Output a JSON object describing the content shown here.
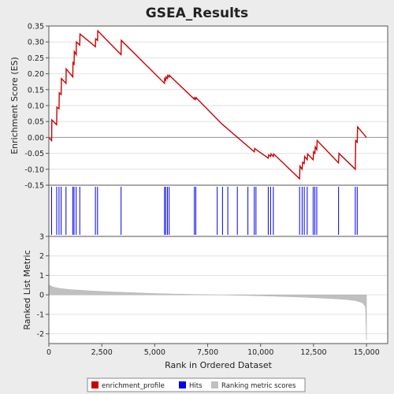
{
  "title": "GSEA_Results",
  "colors": {
    "background": "#ececec",
    "plot_bg": "#ffffff",
    "profile": "#cc0000",
    "hits": "#0000ee",
    "metric_fill": "#c0c0c0",
    "axis": "#555555",
    "text": "#222222"
  },
  "chart_data": [
    {
      "type": "line",
      "name": "enrichment-profile",
      "ylabel": "Enrichment Score (ES)",
      "xlim": [
        0,
        16000
      ],
      "ylim": [
        -0.15,
        0.35
      ],
      "yticks": [
        -0.15,
        -0.1,
        -0.05,
        0.0,
        0.05,
        0.1,
        0.15,
        0.2,
        0.25,
        0.3,
        0.35
      ],
      "ytick_labels": [
        "-0.15",
        "-0.10",
        "-0.05",
        "0.00",
        "0.05",
        "0.10",
        "0.15",
        "0.20",
        "0.25",
        "0.30",
        "0.35"
      ],
      "grid": true,
      "series": [
        {
          "name": "enrichment_profile",
          "x": [
            0,
            130,
            140,
            370,
            380,
            480,
            490,
            580,
            590,
            810,
            820,
            1130,
            1140,
            1190,
            1200,
            1290,
            1300,
            1460,
            1470,
            2200,
            2210,
            2300,
            2310,
            3410,
            3420,
            5460,
            5470,
            5520,
            5530,
            5600,
            5610,
            5680,
            5690,
            6870,
            6880,
            6940,
            6950,
            8200,
            8210,
            9700,
            9720,
            10360,
            10380,
            10470,
            10490,
            10600,
            10620,
            11840,
            11860,
            11960,
            11980,
            12060,
            12080,
            12200,
            12220,
            12480,
            12500,
            12560,
            12580,
            12650,
            12670,
            13680,
            13700,
            14470,
            14490,
            14560,
            14580,
            15000
          ],
          "y": [
            0.0,
            -0.01,
            0.055,
            0.04,
            0.095,
            0.09,
            0.14,
            0.135,
            0.185,
            0.17,
            0.215,
            0.19,
            0.235,
            0.23,
            0.27,
            0.26,
            0.3,
            0.29,
            0.325,
            0.285,
            0.31,
            0.305,
            0.335,
            0.26,
            0.305,
            0.17,
            0.185,
            0.18,
            0.19,
            0.185,
            0.195,
            0.19,
            0.195,
            0.12,
            0.125,
            0.12,
            0.125,
            0.04,
            0.04,
            -0.045,
            -0.035,
            -0.065,
            -0.055,
            -0.06,
            -0.052,
            -0.06,
            -0.052,
            -0.13,
            -0.09,
            -0.1,
            -0.078,
            -0.082,
            -0.06,
            -0.07,
            -0.052,
            -0.07,
            -0.045,
            -0.05,
            -0.03,
            -0.038,
            -0.01,
            -0.08,
            -0.05,
            -0.1,
            -0.01,
            -0.015,
            0.033,
            0.0
          ]
        }
      ]
    },
    {
      "type": "scatter",
      "name": "hits",
      "xlim": [
        0,
        16000
      ],
      "x": [
        130,
        370,
        480,
        580,
        810,
        1130,
        1190,
        1290,
        1460,
        2200,
        2300,
        3410,
        5460,
        5520,
        5600,
        5680,
        6870,
        6940,
        7950,
        8200,
        8450,
        8900,
        9400,
        9700,
        9780,
        10360,
        10470,
        10600,
        11840,
        11960,
        12060,
        12200,
        12480,
        12560,
        12650,
        13680,
        14470,
        14560
      ]
    },
    {
      "type": "area",
      "name": "ranking-metric",
      "ylabel": "Ranked List Metric",
      "xlabel": "Rank in Ordered Dataset",
      "xlim": [
        0,
        16000
      ],
      "ylim": [
        -2.5,
        3.0
      ],
      "xticks": [
        0,
        2500,
        5000,
        7500,
        10000,
        12500,
        15000
      ],
      "xtick_labels": [
        "0",
        "2,500",
        "5,000",
        "7,500",
        "10,000",
        "12,500",
        "15,000"
      ],
      "yticks": [
        -2,
        -1,
        0,
        1,
        2,
        3
      ],
      "ytick_labels": [
        "-2",
        "-1",
        "0",
        "1",
        "2",
        "3"
      ],
      "grid": true,
      "series": [
        {
          "name": "Ranking metric scores",
          "x": [
            0,
            20,
            200,
            500,
            1000,
            2000,
            3000,
            4000,
            5000,
            6000,
            7000,
            8000,
            9000,
            10000,
            11000,
            12000,
            13000,
            14000,
            14500,
            14800,
            14950,
            15000
          ],
          "y": [
            0.6,
            0.5,
            0.4,
            0.33,
            0.27,
            0.2,
            0.15,
            0.11,
            0.07,
            0.04,
            0.02,
            0.0,
            -0.02,
            -0.05,
            -0.08,
            -0.12,
            -0.17,
            -0.23,
            -0.3,
            -0.4,
            -0.6,
            -2.3
          ]
        }
      ]
    }
  ],
  "legend": {
    "placement": "bottom",
    "items": [
      {
        "label": "enrichment_profile",
        "color": "#cc0000"
      },
      {
        "label": "Hits",
        "color": "#0000ee"
      },
      {
        "label": "Ranking metric scores",
        "color": "#c0c0c0"
      }
    ]
  }
}
